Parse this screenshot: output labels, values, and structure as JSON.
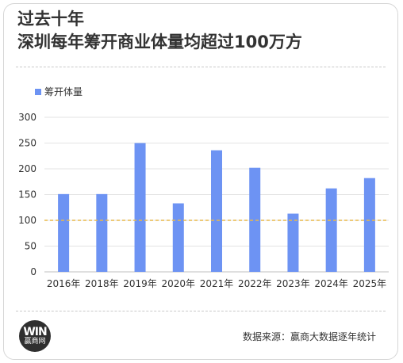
{
  "title_line1": "过去十年",
  "title_line2": "深圳每年筹开商业体量均超过100万方",
  "source": "数据来源：赢商大数据逐年统计",
  "logo": {
    "mark": "WIN",
    "text": "赢商网"
  },
  "colors": {
    "bar": "#6d93f3",
    "reference_line": "#e8b84a",
    "grid": "#e3e3e3",
    "text": "#333333"
  },
  "chart_data": {
    "type": "bar",
    "title": "",
    "xlabel": "",
    "ylabel": "",
    "categories": [
      "2016年",
      "2018年",
      "2019年",
      "2020年",
      "2021年",
      "2022年",
      "2023年",
      "2024年",
      "2025年"
    ],
    "series": [
      {
        "name": "筹开体量",
        "values": [
          151,
          151,
          250,
          133,
          236,
          202,
          113,
          162,
          182
        ]
      }
    ],
    "ylim": [
      0,
      300
    ],
    "yticks": [
      0,
      50,
      100,
      150,
      200,
      250,
      300
    ],
    "reference_line": {
      "value": 100,
      "style": "dashed"
    },
    "grid": true,
    "legend": "top-left"
  }
}
